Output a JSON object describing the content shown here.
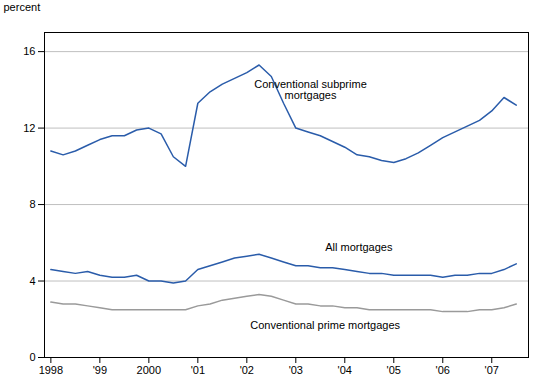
{
  "chart_data": {
    "type": "line",
    "y_label": "percent",
    "x": [
      1998.0,
      1998.25,
      1998.5,
      1998.75,
      1999.0,
      1999.25,
      1999.5,
      1999.75,
      2000.0,
      2000.25,
      2000.5,
      2000.75,
      2001.0,
      2001.25,
      2001.5,
      2001.75,
      2002.0,
      2002.25,
      2002.5,
      2002.75,
      2003.0,
      2003.25,
      2003.5,
      2003.75,
      2004.0,
      2004.25,
      2004.5,
      2004.75,
      2005.0,
      2005.25,
      2005.5,
      2005.75,
      2006.0,
      2006.25,
      2006.5,
      2006.75,
      2007.0,
      2007.25,
      2007.5
    ],
    "series": [
      {
        "color": "#2a5caa",
        "values": [
          10.8,
          10.6,
          10.8,
          11.1,
          11.4,
          11.6,
          11.6,
          11.9,
          12.0,
          11.7,
          10.5,
          10.0,
          13.3,
          13.9,
          14.3,
          14.6,
          14.9,
          15.3,
          14.7,
          13.3,
          12.0,
          11.8,
          11.6,
          11.3,
          11.0,
          10.6,
          10.5,
          10.3,
          10.2,
          10.4,
          10.7,
          11.1,
          11.5,
          11.8,
          12.1,
          12.4,
          12.9,
          13.6,
          13.2
        ]
      },
      {
        "color": "#2a5caa",
        "values": [
          4.6,
          4.5,
          4.4,
          4.5,
          4.3,
          4.2,
          4.2,
          4.3,
          4.0,
          4.0,
          3.9,
          4.0,
          4.6,
          4.8,
          5.0,
          5.2,
          5.3,
          5.4,
          5.2,
          5.0,
          4.8,
          4.8,
          4.7,
          4.7,
          4.6,
          4.5,
          4.4,
          4.4,
          4.3,
          4.3,
          4.3,
          4.3,
          4.2,
          4.3,
          4.3,
          4.4,
          4.4,
          4.6,
          4.9
        ]
      },
      {
        "color": "#9a9a9a",
        "values": [
          2.9,
          2.8,
          2.8,
          2.7,
          2.6,
          2.5,
          2.5,
          2.5,
          2.5,
          2.5,
          2.5,
          2.5,
          2.7,
          2.8,
          3.0,
          3.1,
          3.2,
          3.3,
          3.2,
          3.0,
          2.8,
          2.8,
          2.7,
          2.7,
          2.6,
          2.6,
          2.5,
          2.5,
          2.5,
          2.5,
          2.5,
          2.5,
          2.4,
          2.4,
          2.4,
          2.5,
          2.5,
          2.6,
          2.8
        ]
      }
    ],
    "annotations": [
      {
        "text": "Conventional subprime\nmortgages",
        "x": 2003.3,
        "y": 14.5
      },
      {
        "text": "All mortgages",
        "x": 2003.6,
        "y": 5.55
      },
      {
        "text": "Conventional prime mortgages",
        "x": 2003.6,
        "y": 1.9
      }
    ],
    "xlim": [
      1997.87,
      2007.75
    ],
    "xticks": [
      1998,
      {
        "value": 1999,
        "label": "'99"
      },
      2000,
      {
        "value": 2001,
        "label": "'01"
      },
      {
        "value": 2002,
        "label": "'02"
      },
      {
        "value": 2003,
        "label": "'03"
      },
      {
        "value": 2004,
        "label": "'04"
      },
      {
        "value": 2005,
        "label": "'05"
      },
      {
        "value": 2006,
        "label": "'06"
      },
      {
        "value": 2007,
        "label": "'07"
      }
    ],
    "ylim": [
      0,
      17
    ],
    "yticks": [
      0,
      4,
      8,
      12,
      16
    ],
    "grid": true
  }
}
